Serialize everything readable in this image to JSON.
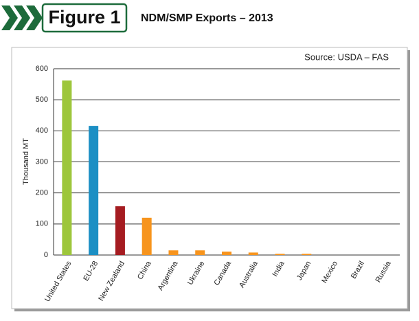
{
  "chart_data": {
    "type": "bar",
    "figure_label": "Figure 1",
    "title": "NDM/SMP Exports – 2013",
    "source": "Source: USDA – FAS",
    "y_label": "Thousand MT",
    "categories": [
      "United States",
      "EU-28",
      "New Zealand",
      "China",
      "Argentina",
      "Ukraine",
      "Canada",
      "Australia",
      "India",
      "Japan",
      "Mexico",
      "Brazil",
      "Russia"
    ],
    "values": [
      562,
      416,
      157,
      120,
      15,
      15,
      11,
      8,
      4,
      4,
      0,
      0,
      0
    ],
    "colors": [
      "#9dc63b",
      "#1b8fc4",
      "#a51c21",
      "#f7941d",
      "#f7941d",
      "#f7941d",
      "#f7941d",
      "#f7941d",
      "#f7941d",
      "#f7941d",
      "#f7941d",
      "#f7941d",
      "#f7941d"
    ],
    "ylim": [
      0,
      600
    ],
    "yticks": [
      0,
      100,
      200,
      300,
      400,
      500,
      600
    ],
    "grid": true
  }
}
